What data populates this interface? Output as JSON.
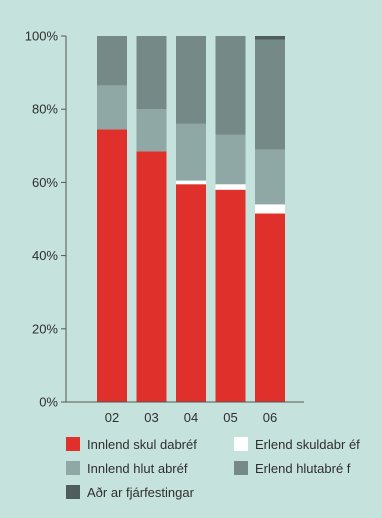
{
  "chart_data": {
    "type": "bar",
    "stacked": true,
    "normalized": true,
    "title": "",
    "xlabel": "",
    "ylabel": "",
    "categories": [
      "02",
      "03",
      "04",
      "05",
      "06"
    ],
    "y_ticks": [
      "0%",
      "20%",
      "40%",
      "60%",
      "80%",
      "100%"
    ],
    "ylim": [
      0,
      100
    ],
    "grid": false,
    "legend_position": "bottom",
    "series": [
      {
        "name": "Innlend skul dabréf",
        "color": "#e0302b",
        "values": [
          74.5,
          68.5,
          59.5,
          58,
          51.5
        ]
      },
      {
        "name": "Erlend skuldabr  éf",
        "color": "#ffffff",
        "values": [
          0,
          0,
          1,
          1.5,
          2.5
        ]
      },
      {
        "name": "Innlend hlut abréf",
        "color": "#8fa8a6",
        "values": [
          12,
          11.5,
          15.5,
          13.5,
          15
        ]
      },
      {
        "name": "Erlend hlutabré  f",
        "color": "#758a87",
        "values": [
          13.5,
          20,
          24,
          27,
          30
        ]
      },
      {
        "name": "Aðr ar fjárfestingar",
        "color": "#4f5e5c",
        "values": [
          0,
          0,
          0,
          0,
          1
        ]
      }
    ]
  }
}
